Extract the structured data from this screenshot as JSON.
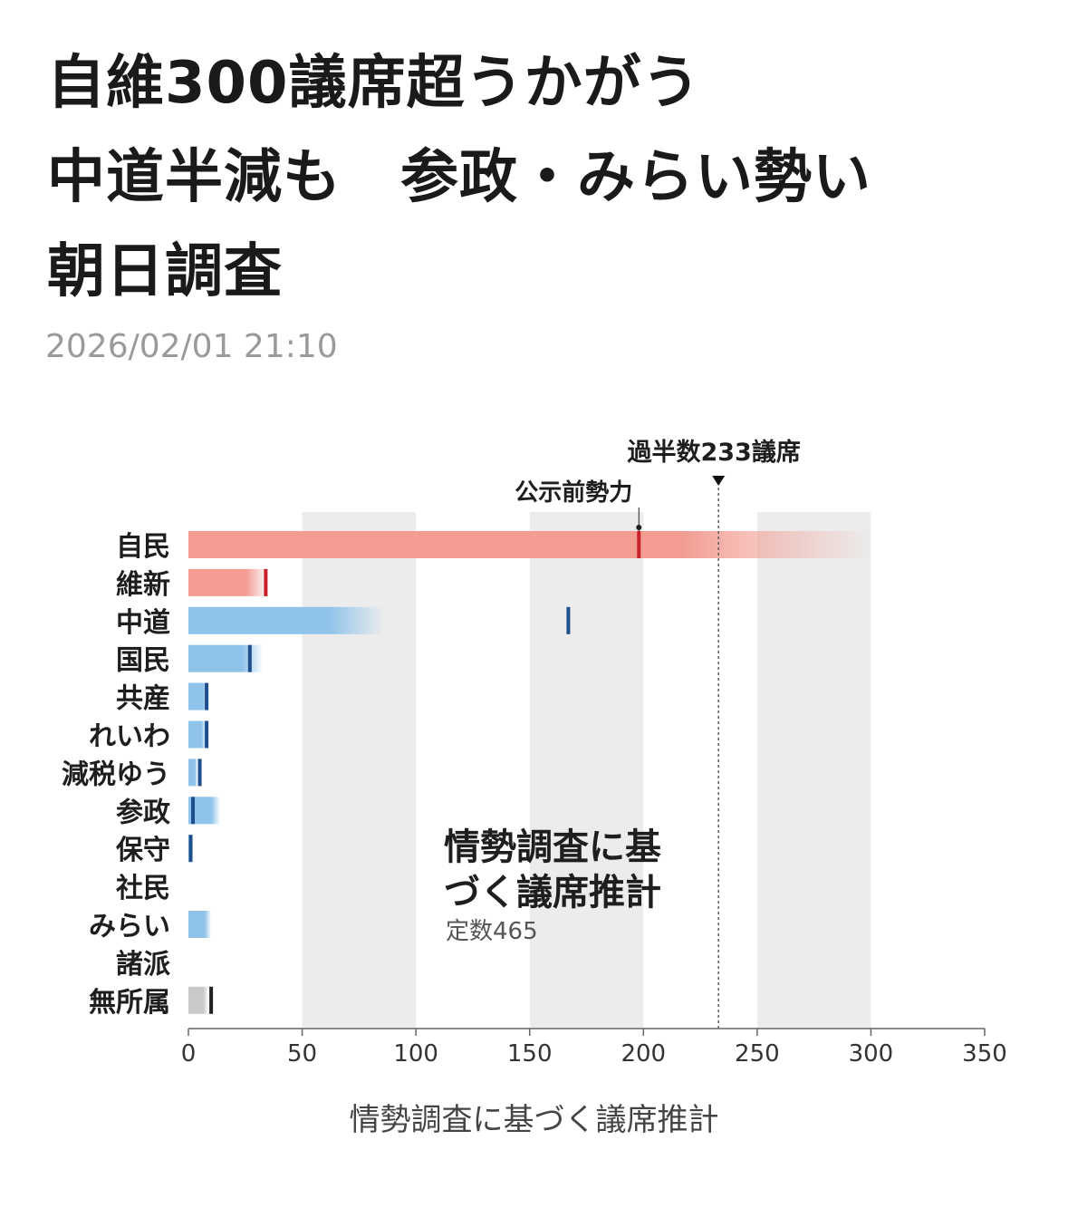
{
  "article": {
    "title_lines": [
      "自維300議席超うかがう",
      "中道半減も　参政・みらい勢い",
      "朝日調査"
    ],
    "timestamp": "2026/02/01 21:10",
    "caption": "情勢調査に基づく議席推計"
  },
  "chart_data": {
    "type": "bar",
    "title": "情勢調査に基づく議席推計",
    "subtitle": "定数465",
    "categories": [
      "自民",
      "維新",
      "中道",
      "国民",
      "共産",
      "れいわ",
      "減税ゆう",
      "参政",
      "保守",
      "社民",
      "みらい",
      "諸派",
      "無所属"
    ],
    "series": [
      {
        "name": "",
        "values": [
          300,
          35,
          86,
          33,
          9,
          8,
          4,
          14,
          1,
          0,
          10,
          0,
          9
        ]
      }
    ],
    "pre_election": [
      198,
      34,
      167,
      27,
      8,
      8,
      5,
      2,
      1,
      0,
      0,
      0,
      10
    ],
    "pre_election_label": "公示前勢力",
    "majority": {
      "value": 233,
      "label": "過半数233議席"
    },
    "xlim": [
      0,
      350
    ],
    "xticks": [
      0,
      50,
      100,
      150,
      200,
      250,
      300,
      350
    ],
    "colors": {
      "ldp_bar": "#f29c92",
      "ldp_tick": "#c8202a",
      "opp_bar": "#8fc3ea",
      "opp_tick": "#1f4e8c",
      "ind_bar": "#c9c9c9",
      "ind_tick": "#222222",
      "band": "#ececec"
    }
  }
}
